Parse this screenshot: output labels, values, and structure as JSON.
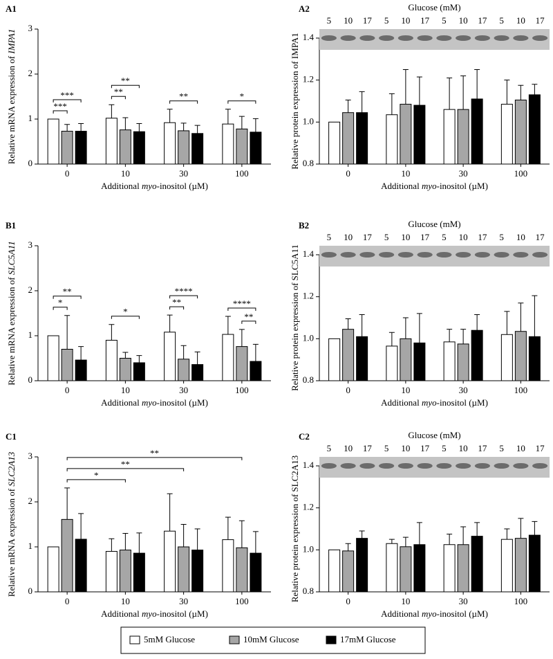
{
  "legend": [
    {
      "name": "5mM Glucose",
      "color": "#ffffff"
    },
    {
      "name": "10mM Glucose",
      "color": "#a6a6a6"
    },
    {
      "name": "17mM Glucose",
      "color": "#000000"
    }
  ],
  "chart_data": [
    {
      "type": "bar",
      "panel": "A1",
      "y_label": [
        {
          "text": "Relative mRNA expression of "
        },
        {
          "text": "IMPA1",
          "italic": true
        }
      ],
      "x_label": [
        {
          "text": "Additional "
        },
        {
          "text": "myo",
          "italic": true
        },
        {
          "text": "-inositol (µM)"
        }
      ],
      "categories": [
        "0",
        "10",
        "30",
        "100"
      ],
      "series": [
        {
          "color": "#ffffff",
          "values": [
            1.0,
            1.02,
            0.92,
            0.89
          ],
          "errors": [
            0,
            0.3,
            0.3,
            0.33
          ]
        },
        {
          "color": "#a6a6a6",
          "values": [
            0.73,
            0.76,
            0.74,
            0.78
          ],
          "errors": [
            0.15,
            0.27,
            0.17,
            0.28
          ]
        },
        {
          "color": "#000000",
          "values": [
            0.73,
            0.72,
            0.68,
            0.71
          ],
          "errors": [
            0.17,
            0.18,
            0.18,
            0.3
          ]
        }
      ],
      "ylim": [
        0,
        3
      ],
      "yticks": [
        0,
        1,
        2,
        3
      ],
      "annotations": [
        {
          "text": "***",
          "between": [
            [
              0,
              0
            ],
            [
              0,
              1
            ]
          ]
        },
        {
          "text": "***",
          "between": [
            [
              0,
              0
            ],
            [
              0,
              2
            ]
          ]
        },
        {
          "text": "**",
          "between": [
            [
              1,
              0
            ],
            [
              1,
              1
            ]
          ]
        },
        {
          "text": "**",
          "between": [
            [
              1,
              0
            ],
            [
              1,
              2
            ]
          ]
        },
        {
          "text": "**",
          "between": [
            [
              2,
              0
            ],
            [
              2,
              2
            ]
          ]
        },
        {
          "text": "*",
          "between": [
            [
              3,
              0
            ],
            [
              3,
              2
            ]
          ]
        }
      ]
    },
    {
      "type": "bar",
      "panel": "A2",
      "y_label": [
        {
          "text": "Relative protein expression of IMPA1"
        }
      ],
      "x_label": [
        {
          "text": "Additional "
        },
        {
          "text": "myo",
          "italic": true
        },
        {
          "text": "-inositol (µM)"
        }
      ],
      "categories": [
        "0",
        "10",
        "30",
        "100"
      ],
      "series": [
        {
          "color": "#ffffff",
          "values": [
            1.0,
            1.035,
            1.06,
            1.085
          ],
          "errors": [
            0,
            0.1,
            0.15,
            0.115
          ]
        },
        {
          "color": "#a6a6a6",
          "values": [
            1.045,
            1.085,
            1.06,
            1.105
          ],
          "errors": [
            0.06,
            0.165,
            0.16,
            0.07
          ]
        },
        {
          "color": "#000000",
          "values": [
            1.045,
            1.08,
            1.11,
            1.13
          ],
          "errors": [
            0.1,
            0.135,
            0.14,
            0.05
          ]
        }
      ],
      "ylim": [
        0.8,
        1.4
      ],
      "yticks": [
        {
          "value": 0.8,
          "label": "0.8"
        },
        {
          "value": 1,
          "label": "1.0"
        },
        {
          "value": 1.2,
          "label": "1.2"
        },
        {
          "value": 1.4,
          "label": "1.4"
        }
      ],
      "blot": {
        "title": "Glucose (mM)",
        "lanes": [
          "5",
          "10",
          "17",
          "5",
          "10",
          "17",
          "5",
          "10",
          "17",
          "5",
          "10",
          "17"
        ]
      }
    },
    {
      "type": "bar",
      "panel": "B1",
      "y_label": [
        {
          "text": "Relative mRNA expression of "
        },
        {
          "text": "SLC5A11",
          "italic": true
        }
      ],
      "x_label": [
        {
          "text": "Additional "
        },
        {
          "text": "myo",
          "italic": true
        },
        {
          "text": "-inositol (µM)"
        }
      ],
      "categories": [
        "0",
        "10",
        "30",
        "100"
      ],
      "series": [
        {
          "color": "#ffffff",
          "values": [
            1.0,
            0.9,
            1.08,
            1.03
          ],
          "errors": [
            0,
            0.35,
            0.38,
            0.4
          ]
        },
        {
          "color": "#a6a6a6",
          "values": [
            0.7,
            0.5,
            0.48,
            0.76
          ],
          "errors": [
            0.75,
            0.13,
            0.3,
            0.38
          ]
        },
        {
          "color": "#000000",
          "values": [
            0.46,
            0.4,
            0.36,
            0.43
          ],
          "errors": [
            0.3,
            0.16,
            0.28,
            0.38
          ]
        }
      ],
      "ylim": [
        0,
        3
      ],
      "yticks": [
        0,
        1,
        2,
        3
      ],
      "annotations": [
        {
          "text": "*",
          "between": [
            [
              0,
              0
            ],
            [
              0,
              1
            ]
          ]
        },
        {
          "text": "**",
          "between": [
            [
              0,
              0
            ],
            [
              0,
              2
            ]
          ]
        },
        {
          "text": "*",
          "between": [
            [
              1,
              0
            ],
            [
              1,
              2
            ]
          ]
        },
        {
          "text": "**",
          "between": [
            [
              2,
              0
            ],
            [
              2,
              1
            ]
          ]
        },
        {
          "text": "****",
          "between": [
            [
              2,
              0
            ],
            [
              2,
              2
            ]
          ]
        },
        {
          "text": "**",
          "between": [
            [
              3,
              1
            ],
            [
              3,
              2
            ]
          ]
        },
        {
          "text": "****",
          "between": [
            [
              3,
              0
            ],
            [
              3,
              2
            ]
          ]
        }
      ]
    },
    {
      "type": "bar",
      "panel": "B2",
      "y_label": [
        {
          "text": "Relative protein expression of SLC5A11"
        }
      ],
      "x_label": [
        {
          "text": "Additional "
        },
        {
          "text": "myo",
          "italic": true
        },
        {
          "text": "-inositol (µM)"
        }
      ],
      "categories": [
        "0",
        "10",
        "30",
        "100"
      ],
      "series": [
        {
          "color": "#ffffff",
          "values": [
            1.0,
            0.965,
            0.985,
            1.02
          ],
          "errors": [
            0,
            0.065,
            0.06,
            0.11
          ]
        },
        {
          "color": "#a6a6a6",
          "values": [
            1.045,
            1.0,
            0.975,
            1.035
          ],
          "errors": [
            0.05,
            0.1,
            0.07,
            0.135
          ]
        },
        {
          "color": "#000000",
          "values": [
            1.01,
            0.98,
            1.04,
            1.01
          ],
          "errors": [
            0.105,
            0.14,
            0.075,
            0.195
          ]
        }
      ],
      "ylim": [
        0.8,
        1.4
      ],
      "yticks": [
        {
          "value": 0.8,
          "label": "0.8"
        },
        {
          "value": 1,
          "label": "1.0"
        },
        {
          "value": 1.2,
          "label": "1.2"
        },
        {
          "value": 1.4,
          "label": "1.4"
        }
      ],
      "blot": {
        "title": "Glucose (mM)",
        "lanes": [
          "5",
          "10",
          "17",
          "5",
          "10",
          "17",
          "5",
          "10",
          "17",
          "5",
          "10",
          "17"
        ]
      }
    },
    {
      "type": "bar",
      "panel": "C1",
      "y_label": [
        {
          "text": "Relative mRNA expression of "
        },
        {
          "text": "SLC2A13",
          "italic": true
        }
      ],
      "x_label": [
        {
          "text": "Additional "
        },
        {
          "text": "myo",
          "italic": true
        },
        {
          "text": "-inositol (µM)"
        }
      ],
      "categories": [
        "0",
        "10",
        "30",
        "100"
      ],
      "series": [
        {
          "color": "#ffffff",
          "values": [
            1.0,
            0.9,
            1.35,
            1.16
          ],
          "errors": [
            0,
            0.28,
            0.83,
            0.5
          ]
        },
        {
          "color": "#a6a6a6",
          "values": [
            1.61,
            0.93,
            1.0,
            0.98
          ],
          "errors": [
            0.7,
            0.37,
            0.5,
            0.6
          ]
        },
        {
          "color": "#000000",
          "values": [
            1.17,
            0.86,
            0.93,
            0.86
          ],
          "errors": [
            0.57,
            0.45,
            0.47,
            0.48
          ]
        }
      ],
      "ylim": [
        0,
        3
      ],
      "yticks": [
        0,
        1,
        2,
        3
      ],
      "annotations": [
        {
          "text": "*",
          "between": [
            [
              0,
              1
            ],
            [
              1,
              1
            ]
          ]
        },
        {
          "text": "**",
          "between": [
            [
              0,
              1
            ],
            [
              2,
              1
            ]
          ]
        },
        {
          "text": "**",
          "between": [
            [
              0,
              1
            ],
            [
              3,
              1
            ]
          ]
        }
      ]
    },
    {
      "type": "bar",
      "panel": "C2",
      "y_label": [
        {
          "text": "Relative protein expression of SLC2A13"
        }
      ],
      "x_label": [
        {
          "text": "Additional "
        },
        {
          "text": "myo",
          "italic": true
        },
        {
          "text": "-inositol (µM)"
        }
      ],
      "categories": [
        "0",
        "10",
        "30",
        "100"
      ],
      "series": [
        {
          "color": "#ffffff",
          "values": [
            1.0,
            1.03,
            1.025,
            1.05
          ],
          "errors": [
            0,
            0.02,
            0.05,
            0.05
          ]
        },
        {
          "color": "#a6a6a6",
          "values": [
            0.995,
            1.015,
            1.025,
            1.055
          ],
          "errors": [
            0.035,
            0.045,
            0.085,
            0.095
          ]
        },
        {
          "color": "#000000",
          "values": [
            1.055,
            1.025,
            1.065,
            1.07
          ],
          "errors": [
            0.035,
            0.105,
            0.065,
            0.065
          ]
        }
      ],
      "ylim": [
        0.8,
        1.4
      ],
      "yticks": [
        {
          "value": 0.8,
          "label": "0.8"
        },
        {
          "value": 1,
          "label": "1.0"
        },
        {
          "value": 1.2,
          "label": "1.2"
        },
        {
          "value": 1.4,
          "label": "1.4"
        }
      ],
      "blot": {
        "title": "Glucose (mM)",
        "lanes": [
          "5",
          "10",
          "17",
          "5",
          "10",
          "17",
          "5",
          "10",
          "17",
          "5",
          "10",
          "17"
        ]
      }
    }
  ]
}
